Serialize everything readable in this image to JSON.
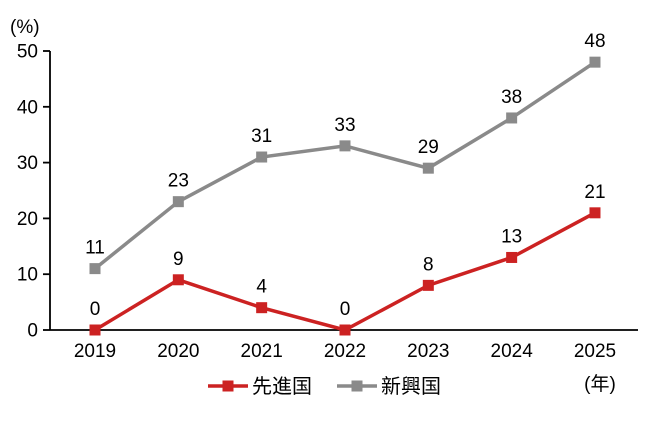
{
  "chart_data": {
    "type": "line",
    "unit_label_y": "(%)",
    "unit_label_x": "(年)",
    "categories": [
      "2019",
      "2020",
      "2021",
      "2022",
      "2023",
      "2024",
      "2025"
    ],
    "series": [
      {
        "name": "先進国",
        "color": "#cc2222",
        "marker": "square",
        "values": [
          0,
          9,
          4,
          0,
          8,
          13,
          21
        ]
      },
      {
        "name": "新興国",
        "color": "#8a8a8a",
        "marker": "square",
        "values": [
          11,
          23,
          31,
          33,
          29,
          38,
          48
        ]
      }
    ],
    "ylim": [
      0,
      50
    ],
    "yticks": [
      0,
      10,
      20,
      30,
      40,
      50
    ],
    "grid": false,
    "data_labels": true,
    "legend_position": "bottom",
    "axis_color": "#000000",
    "text_color": "#000000"
  }
}
